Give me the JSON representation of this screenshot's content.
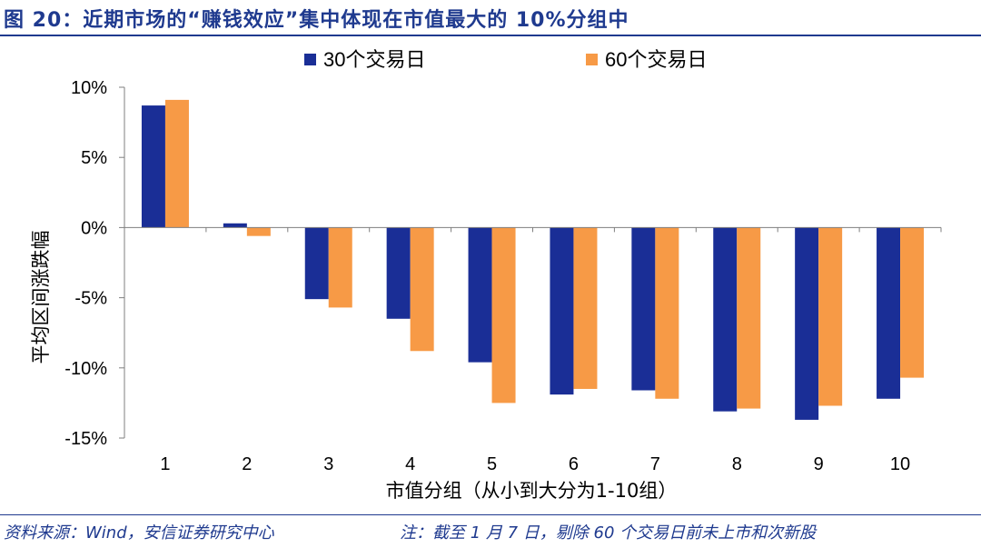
{
  "header": {
    "title": "图 20：近期市场的“赚钱效应”集中体现在市值最大的 10%分组中"
  },
  "footer": {
    "source": "资料来源：Wind，安信证券研究中心",
    "note": "注：截至 1 月 7 日，剔除 60 个交易日前未上市和次新股"
  },
  "colors": {
    "series_30": "#1a2e96",
    "series_60": "#f79a46",
    "brand": "#1f3a8f"
  },
  "chart_data": {
    "type": "bar",
    "title": "",
    "xlabel": "市值分组（从小到大分为1-10组）",
    "ylabel": "平均区间涨跌幅",
    "categories": [
      "1",
      "2",
      "3",
      "4",
      "5",
      "6",
      "7",
      "8",
      "9",
      "10"
    ],
    "ylim": [
      -15,
      10
    ],
    "yticks": [
      10,
      5,
      0,
      -5,
      -10,
      -15
    ],
    "ytick_labels": [
      "10%",
      "5%",
      "0%",
      "-5%",
      "-10%",
      "-15%"
    ],
    "legend_position": "top",
    "series": [
      {
        "name": "30个交易日",
        "values": [
          8.7,
          0.3,
          -5.1,
          -6.5,
          -9.6,
          -11.9,
          -11.6,
          -13.1,
          -13.7,
          -12.2
        ]
      },
      {
        "name": "60个交易日",
        "values": [
          9.1,
          -0.6,
          -5.7,
          -8.8,
          -12.5,
          -11.5,
          -12.2,
          -12.9,
          -12.7,
          -10.7
        ]
      }
    ]
  }
}
